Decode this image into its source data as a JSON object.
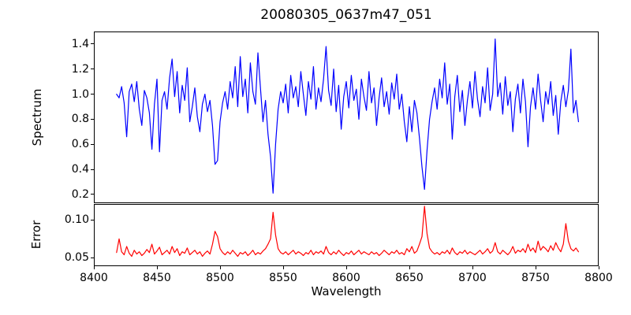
{
  "colors": {
    "background": "#ffffff",
    "axis": "#000000",
    "spectrum_line": "#0000ff",
    "error_line": "#ff0000"
  },
  "axes": {
    "x": {
      "lim": [
        8400,
        8800
      ],
      "tick_values": [
        8400,
        8450,
        8500,
        8550,
        8600,
        8650,
        8700,
        8750,
        8800
      ],
      "tick_labels": [
        "8400",
        "8450",
        "8500",
        "8550",
        "8600",
        "8650",
        "8700",
        "8750",
        "8800"
      ]
    },
    "spectrum_y": {
      "lim": [
        0.13,
        1.5
      ],
      "tick_values": [
        0.2,
        0.4,
        0.6,
        0.8,
        1.0,
        1.2,
        1.4
      ],
      "tick_labels": [
        "0.2",
        "0.4",
        "0.6",
        "0.8",
        "1.0",
        "1.2",
        "1.4"
      ]
    },
    "error_y": {
      "lim": [
        0.039,
        0.121
      ],
      "tick_values": [
        0.05,
        0.1
      ],
      "tick_labels": [
        "0.05",
        "0.10"
      ]
    }
  },
  "chart_data": [
    {
      "type": "line",
      "name": "spectrum",
      "title": "20080305_0637m47_051",
      "ylabel": "Spectrum",
      "color": "#0000ff",
      "xlim": [
        8400,
        8800
      ],
      "ylim": [
        0.13,
        1.5
      ],
      "x_start": 8418,
      "x_step": 2,
      "grid": false,
      "legend": "none",
      "values": [
        1.0,
        0.97,
        1.06,
        0.93,
        0.66,
        1.02,
        1.08,
        0.94,
        1.1,
        0.88,
        0.75,
        1.03,
        0.97,
        0.85,
        0.56,
        0.92,
        1.12,
        0.54,
        0.95,
        1.02,
        0.88,
        1.13,
        1.28,
        0.98,
        1.18,
        0.85,
        1.07,
        0.95,
        1.21,
        0.78,
        0.9,
        1.05,
        0.82,
        0.7,
        0.92,
        1.0,
        0.86,
        0.95,
        0.75,
        0.44,
        0.47,
        0.78,
        0.93,
        1.02,
        0.88,
        1.1,
        0.97,
        1.22,
        0.9,
        1.3,
        0.98,
        1.12,
        0.85,
        1.25,
        1.02,
        0.92,
        1.33,
        1.05,
        0.78,
        0.95,
        0.68,
        0.5,
        0.21,
        0.6,
        0.88,
        1.02,
        0.93,
        1.08,
        0.85,
        1.15,
        0.97,
        1.06,
        0.9,
        1.18,
        1.0,
        0.83,
        1.1,
        0.96,
        1.22,
        0.88,
        1.05,
        0.94,
        1.12,
        1.38,
        1.03,
        0.91,
        1.2,
        0.86,
        1.07,
        0.72,
        0.98,
        1.1,
        0.89,
        1.15,
        0.95,
        1.04,
        0.8,
        1.12,
        0.98,
        0.87,
        1.18,
        0.93,
        1.05,
        0.75,
        0.97,
        1.13,
        0.9,
        1.02,
        0.84,
        1.09,
        0.96,
        1.16,
        0.88,
        1.0,
        0.78,
        0.62,
        0.9,
        0.7,
        0.95,
        0.85,
        0.65,
        0.42,
        0.24,
        0.55,
        0.8,
        0.94,
        1.05,
        0.88,
        1.12,
        0.97,
        1.25,
        0.92,
        1.08,
        0.64,
        0.98,
        1.15,
        0.86,
        1.03,
        0.75,
        0.95,
        1.1,
        0.89,
        1.18,
        0.96,
        0.82,
        1.06,
        0.93,
        1.21,
        0.87,
        1.0,
        1.44,
        0.98,
        1.09,
        0.84,
        1.14,
        0.91,
        1.02,
        0.7,
        0.96,
        1.08,
        0.85,
        1.12,
        0.94,
        0.58,
        0.9,
        1.05,
        0.88,
        1.16,
        0.95,
        0.78,
        1.02,
        0.92,
        1.1,
        0.83,
        0.99,
        0.68,
        0.94,
        1.07,
        0.9,
        1.03,
        1.36,
        0.85,
        0.95,
        0.78
      ]
    },
    {
      "type": "line",
      "name": "error",
      "xlabel": "Wavelength",
      "ylabel": "Error",
      "color": "#ff0000",
      "xlim": [
        8400,
        8800
      ],
      "ylim": [
        0.039,
        0.121
      ],
      "x_start": 8418,
      "x_step": 2,
      "grid": false,
      "legend": "none",
      "values": [
        0.057,
        0.075,
        0.058,
        0.054,
        0.065,
        0.056,
        0.052,
        0.06,
        0.055,
        0.058,
        0.053,
        0.056,
        0.061,
        0.057,
        0.068,
        0.055,
        0.059,
        0.064,
        0.054,
        0.057,
        0.06,
        0.055,
        0.065,
        0.057,
        0.062,
        0.053,
        0.058,
        0.056,
        0.063,
        0.054,
        0.057,
        0.06,
        0.055,
        0.058,
        0.052,
        0.056,
        0.059,
        0.055,
        0.068,
        0.085,
        0.078,
        0.062,
        0.057,
        0.054,
        0.058,
        0.055,
        0.06,
        0.056,
        0.052,
        0.057,
        0.055,
        0.058,
        0.053,
        0.056,
        0.06,
        0.054,
        0.057,
        0.055,
        0.059,
        0.062,
        0.068,
        0.075,
        0.11,
        0.08,
        0.062,
        0.057,
        0.055,
        0.058,
        0.054,
        0.057,
        0.06,
        0.055,
        0.058,
        0.056,
        0.053,
        0.057,
        0.055,
        0.06,
        0.054,
        0.058,
        0.056,
        0.059,
        0.055,
        0.065,
        0.057,
        0.054,
        0.058,
        0.055,
        0.06,
        0.056,
        0.053,
        0.057,
        0.055,
        0.059,
        0.054,
        0.057,
        0.06,
        0.055,
        0.058,
        0.056,
        0.054,
        0.058,
        0.055,
        0.057,
        0.053,
        0.056,
        0.06,
        0.057,
        0.054,
        0.058,
        0.056,
        0.06,
        0.055,
        0.057,
        0.054,
        0.062,
        0.058,
        0.065,
        0.056,
        0.059,
        0.068,
        0.078,
        0.118,
        0.082,
        0.063,
        0.058,
        0.055,
        0.057,
        0.054,
        0.058,
        0.056,
        0.06,
        0.055,
        0.063,
        0.057,
        0.054,
        0.058,
        0.056,
        0.06,
        0.055,
        0.058,
        0.056,
        0.054,
        0.057,
        0.06,
        0.055,
        0.058,
        0.062,
        0.056,
        0.059,
        0.07,
        0.058,
        0.055,
        0.06,
        0.057,
        0.054,
        0.058,
        0.065,
        0.056,
        0.06,
        0.058,
        0.062,
        0.057,
        0.068,
        0.059,
        0.063,
        0.057,
        0.072,
        0.06,
        0.065,
        0.062,
        0.058,
        0.066,
        0.06,
        0.07,
        0.063,
        0.058,
        0.068,
        0.095,
        0.072,
        0.062,
        0.059,
        0.063,
        0.058
      ]
    }
  ]
}
